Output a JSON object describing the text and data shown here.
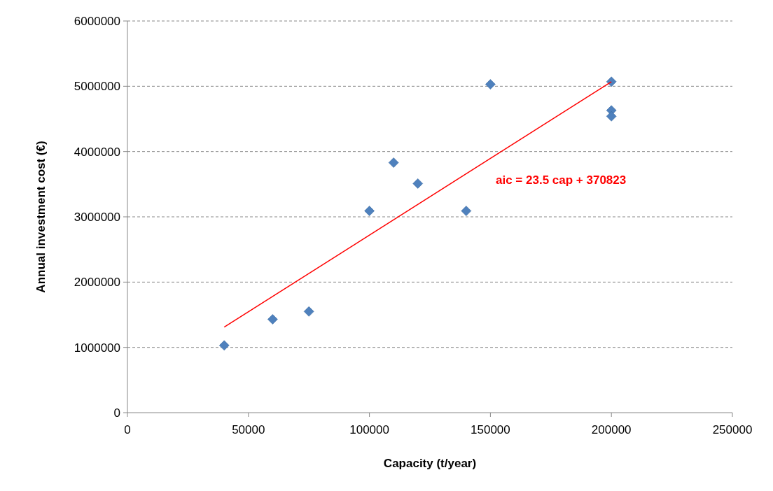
{
  "chart_data": {
    "type": "scatter",
    "xlabel": "Capacity (t/year)",
    "ylabel": "Annual investment cost (€)",
    "xlim": [
      0,
      250000
    ],
    "xticks": [
      0,
      50000,
      100000,
      150000,
      200000,
      250000
    ],
    "ylim": [
      0,
      6000000
    ],
    "yticks": [
      0,
      1000000,
      2000000,
      3000000,
      4000000,
      5000000,
      6000000
    ],
    "grid": "y",
    "marker": "diamond",
    "series": [
      {
        "color": "#4f81bd",
        "x": [
          40000,
          60000,
          75000,
          100000,
          110000,
          120000,
          140000,
          150000,
          200000,
          200000,
          200000
        ],
        "values": [
          1030000,
          1430000,
          1550000,
          3090000,
          3830000,
          3510000,
          3090000,
          5030000,
          5070000,
          4630000,
          4540000
        ]
      },
      {
        "type": "line",
        "color": "#ff0000",
        "line_style": "solid",
        "marker": "none",
        "x": [
          40000,
          200000
        ],
        "values": [
          1310000,
          5070000
        ]
      }
    ],
    "annotations": [
      "aic = 23.5 cap + 370823"
    ]
  }
}
